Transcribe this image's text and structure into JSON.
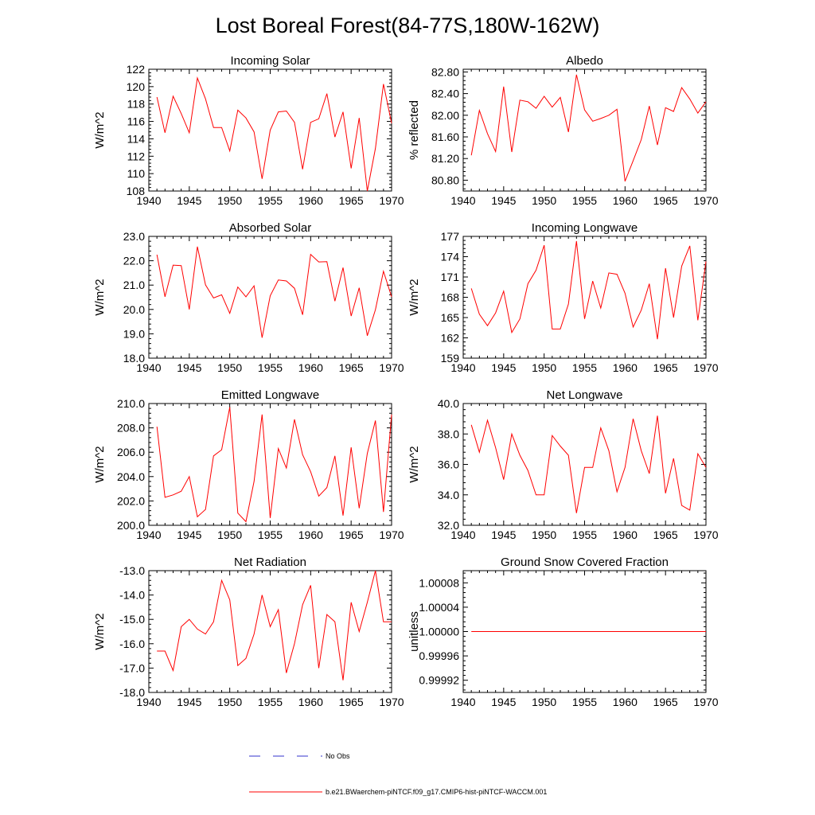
{
  "figure": {
    "title": "Lost Boreal Forest(84-77S,180W-162W)",
    "legend": [
      {
        "label": "No Obs",
        "color": "#3333cc",
        "dash": true
      },
      {
        "label": "b.e21.BWaerchem-piNTCF.f09_g17.CMIP6-hist-piNTCF-WACCM.001",
        "color": "#ff0000",
        "dash": false
      }
    ]
  },
  "chart_data": [
    {
      "type": "line",
      "title": "Incoming Solar",
      "ylabel": "W/m^2",
      "xlim": [
        1940,
        1970
      ],
      "ylim": [
        108,
        122
      ],
      "xticks": [
        1940,
        1945,
        1950,
        1955,
        1960,
        1965,
        1970
      ],
      "xtick_labels": [
        "1940",
        "1945",
        "1950",
        "1955",
        "1960",
        "1965",
        "1970"
      ],
      "yticks": [
        108,
        110,
        112,
        114,
        116,
        118,
        120,
        122
      ],
      "ytick_labels": [
        "108",
        "110",
        "112",
        "114",
        "116",
        "118",
        "120",
        "122"
      ],
      "color": "#ff0000",
      "x": [
        1941,
        1942,
        1943,
        1944,
        1945,
        1946,
        1947,
        1948,
        1949,
        1950,
        1951,
        1952,
        1953,
        1954,
        1955,
        1956,
        1957,
        1958,
        1959,
        1960,
        1961,
        1962,
        1963,
        1964,
        1965,
        1966,
        1967,
        1968,
        1969,
        1970
      ],
      "y": [
        118.8,
        114.7,
        118.9,
        116.9,
        114.7,
        121.0,
        118.6,
        115.3,
        115.3,
        112.6,
        117.3,
        116.4,
        114.8,
        109.4,
        115.0,
        117.1,
        117.2,
        115.9,
        110.5,
        115.9,
        116.3,
        119.2,
        114.2,
        117.1,
        110.6,
        116.4,
        108.0,
        112.9,
        120.3,
        115.8
      ]
    },
    {
      "type": "line",
      "title": "Albedo",
      "ylabel": "% reflected",
      "xlim": [
        1940,
        1970
      ],
      "ylim": [
        80.6,
        82.85
      ],
      "xticks": [
        1940,
        1945,
        1950,
        1955,
        1960,
        1965,
        1970
      ],
      "xtick_labels": [
        "1940",
        "1945",
        "1950",
        "1955",
        "1960",
        "1965",
        "1970"
      ],
      "yticks": [
        80.8,
        81.2,
        81.6,
        82.0,
        82.4,
        82.8
      ],
      "ytick_labels": [
        "80.80",
        "81.20",
        "81.60",
        "82.00",
        "82.40",
        "82.80"
      ],
      "color": "#ff0000",
      "x": [
        1941,
        1942,
        1943,
        1944,
        1945,
        1946,
        1947,
        1948,
        1949,
        1950,
        1951,
        1952,
        1953,
        1954,
        1955,
        1956,
        1957,
        1958,
        1959,
        1960,
        1961,
        1962,
        1963,
        1964,
        1965,
        1966,
        1967,
        1968,
        1969,
        1970
      ],
      "y": [
        81.26,
        82.09,
        81.66,
        81.33,
        82.53,
        81.32,
        82.28,
        82.25,
        82.13,
        82.35,
        82.15,
        82.33,
        81.69,
        82.75,
        82.1,
        81.89,
        81.94,
        82.0,
        82.11,
        80.78,
        81.16,
        81.55,
        82.17,
        81.45,
        82.14,
        82.07,
        82.51,
        82.3,
        82.04,
        82.25
      ]
    },
    {
      "type": "line",
      "title": "Absorbed Solar",
      "ylabel": "W/m^2",
      "xlim": [
        1940,
        1970
      ],
      "ylim": [
        18,
        23
      ],
      "xticks": [
        1940,
        1945,
        1950,
        1955,
        1960,
        1965,
        1970
      ],
      "xtick_labels": [
        "1940",
        "1945",
        "1950",
        "1955",
        "1960",
        "1965",
        "1970"
      ],
      "yticks": [
        18,
        19,
        20,
        21,
        22,
        23
      ],
      "ytick_labels": [
        "18.0",
        "19.0",
        "20.0",
        "21.0",
        "22.0",
        "23.0"
      ],
      "color": "#ff0000",
      "x": [
        1941,
        1942,
        1943,
        1944,
        1945,
        1946,
        1947,
        1948,
        1949,
        1950,
        1951,
        1952,
        1953,
        1954,
        1955,
        1956,
        1957,
        1958,
        1959,
        1960,
        1961,
        1962,
        1963,
        1964,
        1965,
        1966,
        1967,
        1968,
        1969,
        1970
      ],
      "y": [
        22.25,
        20.52,
        21.82,
        21.8,
        20.0,
        22.58,
        21.01,
        20.47,
        20.6,
        19.84,
        20.92,
        20.52,
        20.97,
        18.84,
        20.56,
        21.21,
        21.17,
        20.87,
        19.78,
        22.26,
        21.95,
        21.96,
        20.34,
        21.72,
        19.73,
        20.89,
        18.92,
        19.99,
        21.57,
        20.52
      ]
    },
    {
      "type": "line",
      "title": "Incoming Longwave",
      "ylabel": "W/m^2",
      "xlim": [
        1940,
        1970
      ],
      "ylim": [
        159,
        177
      ],
      "xticks": [
        1940,
        1945,
        1950,
        1955,
        1960,
        1965,
        1970
      ],
      "xtick_labels": [
        "1940",
        "1945",
        "1950",
        "1955",
        "1960",
        "1965",
        "1970"
      ],
      "yticks": [
        159,
        162,
        165,
        168,
        171,
        174,
        177
      ],
      "ytick_labels": [
        "159",
        "162",
        "165",
        "168",
        "171",
        "174",
        "177"
      ],
      "color": "#ff0000",
      "x": [
        1941,
        1942,
        1943,
        1944,
        1945,
        1946,
        1947,
        1948,
        1949,
        1950,
        1951,
        1952,
        1953,
        1954,
        1955,
        1956,
        1957,
        1958,
        1959,
        1960,
        1961,
        1962,
        1963,
        1964,
        1965,
        1966,
        1967,
        1968,
        1969,
        1970
      ],
      "y": [
        169.3,
        165.5,
        163.8,
        165.7,
        168.9,
        162.8,
        164.8,
        170.0,
        172.0,
        175.7,
        163.3,
        163.3,
        167.0,
        176.3,
        164.8,
        170.4,
        166.4,
        171.6,
        171.4,
        168.6,
        163.6,
        166.1,
        170.0,
        161.8,
        172.3,
        165.0,
        172.6,
        175.6,
        164.6,
        173.3
      ]
    },
    {
      "type": "line",
      "title": "Emitted Longwave",
      "ylabel": "W/m^2",
      "xlim": [
        1940,
        1970
      ],
      "ylim": [
        200,
        210
      ],
      "xticks": [
        1940,
        1945,
        1950,
        1955,
        1960,
        1965,
        1970
      ],
      "xtick_labels": [
        "1940",
        "1945",
        "1950",
        "1955",
        "1960",
        "1965",
        "1970"
      ],
      "yticks": [
        200,
        202,
        204,
        206,
        208,
        210
      ],
      "ytick_labels": [
        "200.0",
        "202.0",
        "204.0",
        "206.0",
        "208.0",
        "210.0"
      ],
      "color": "#ff0000",
      "x": [
        1941,
        1942,
        1943,
        1944,
        1945,
        1946,
        1947,
        1948,
        1949,
        1950,
        1951,
        1952,
        1953,
        1954,
        1955,
        1956,
        1957,
        1958,
        1959,
        1960,
        1961,
        1962,
        1963,
        1964,
        1965,
        1966,
        1967,
        1968,
        1969,
        1970
      ],
      "y": [
        208.1,
        202.3,
        202.5,
        202.8,
        204.0,
        200.7,
        201.3,
        205.7,
        206.2,
        209.7,
        201.0,
        200.3,
        203.6,
        209.1,
        200.6,
        206.3,
        204.7,
        208.7,
        205.8,
        204.4,
        202.4,
        203.1,
        205.7,
        200.8,
        206.4,
        201.4,
        205.9,
        208.6,
        201.1,
        209.1
      ]
    },
    {
      "type": "line",
      "title": "Net Longwave",
      "ylabel": "W/m^2",
      "xlim": [
        1940,
        1970
      ],
      "ylim": [
        32,
        40
      ],
      "xticks": [
        1940,
        1945,
        1950,
        1955,
        1960,
        1965,
        1970
      ],
      "xtick_labels": [
        "1940",
        "1945",
        "1950",
        "1955",
        "1960",
        "1965",
        "1970"
      ],
      "yticks": [
        32,
        34,
        36,
        38,
        40
      ],
      "ytick_labels": [
        "32.0",
        "34.0",
        "36.0",
        "38.0",
        "40.0"
      ],
      "color": "#ff0000",
      "x": [
        1941,
        1942,
        1943,
        1944,
        1945,
        1946,
        1947,
        1948,
        1949,
        1950,
        1951,
        1952,
        1953,
        1954,
        1955,
        1956,
        1957,
        1958,
        1959,
        1960,
        1961,
        1962,
        1963,
        1964,
        1965,
        1966,
        1967,
        1968,
        1969,
        1970
      ],
      "y": [
        38.6,
        36.8,
        38.9,
        37.1,
        35.0,
        38.0,
        36.6,
        35.6,
        34.0,
        34.0,
        37.9,
        37.2,
        36.6,
        32.8,
        35.8,
        35.8,
        38.4,
        36.9,
        34.2,
        35.8,
        39.0,
        36.9,
        35.4,
        39.2,
        34.1,
        36.4,
        33.3,
        33.0,
        36.7,
        35.8
      ]
    },
    {
      "type": "line",
      "title": "Net Radiation",
      "ylabel": "W/m^2",
      "xlim": [
        1940,
        1970
      ],
      "ylim": [
        -18,
        -13
      ],
      "xticks": [
        1940,
        1945,
        1950,
        1955,
        1960,
        1965,
        1970
      ],
      "xtick_labels": [
        "1940",
        "1945",
        "1950",
        "1955",
        "1960",
        "1965",
        "1970"
      ],
      "yticks": [
        -18,
        -17,
        -16,
        -15,
        -14,
        -13
      ],
      "ytick_labels": [
        "-18.0",
        "-17.0",
        "-16.0",
        "-15.0",
        "-14.0",
        "-13.0"
      ],
      "color": "#ff0000",
      "x": [
        1941,
        1942,
        1943,
        1944,
        1945,
        1946,
        1947,
        1948,
        1949,
        1950,
        1951,
        1952,
        1953,
        1954,
        1955,
        1956,
        1957,
        1958,
        1959,
        1960,
        1961,
        1962,
        1963,
        1964,
        1965,
        1966,
        1967,
        1968,
        1969,
        1970
      ],
      "y": [
        -16.3,
        -16.3,
        -17.1,
        -15.3,
        -15.0,
        -15.4,
        -15.6,
        -15.1,
        -13.4,
        -14.2,
        -16.9,
        -16.6,
        -15.6,
        -14.0,
        -15.3,
        -14.6,
        -17.2,
        -16.0,
        -14.4,
        -13.6,
        -17.0,
        -14.8,
        -15.1,
        -17.5,
        -14.3,
        -15.5,
        -14.3,
        -13.0,
        -15.1,
        -15.1
      ]
    },
    {
      "type": "line",
      "title": "Ground Snow Covered Fraction",
      "ylabel": "unitless",
      "xlim": [
        1940,
        1970
      ],
      "ylim": [
        0.9999,
        1.0001
      ],
      "xticks": [
        1940,
        1945,
        1950,
        1955,
        1960,
        1965,
        1970
      ],
      "xtick_labels": [
        "1940",
        "1945",
        "1950",
        "1955",
        "1960",
        "1965",
        "1970"
      ],
      "yticks": [
        0.99992,
        0.99996,
        1.0,
        1.00004,
        1.00008
      ],
      "ytick_labels": [
        "0.99992",
        "0.99996",
        "1.00000",
        "1.00004",
        "1.00008"
      ],
      "color": "#ff0000",
      "x": [
        1941,
        1970
      ],
      "y": [
        1.0,
        1.0
      ]
    }
  ]
}
